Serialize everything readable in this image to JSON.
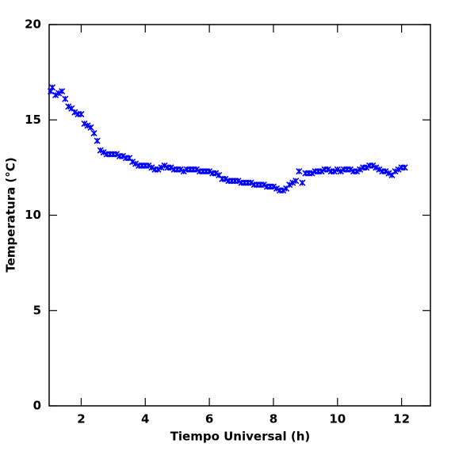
{
  "chart_data": {
    "type": "scatter",
    "xlabel": "Tiempo Universal (h)",
    "ylabel": "Temperatura (°C)",
    "color": "#0000ff",
    "xlim": [
      1,
      12.9
    ],
    "ylim": [
      0,
      20
    ],
    "xticks": [
      2,
      4,
      6,
      8,
      10,
      12
    ],
    "yticks": [
      0,
      5,
      10,
      15,
      20
    ],
    "x": [
      1.05,
      1.1,
      1.2,
      1.3,
      1.4,
      1.5,
      1.6,
      1.7,
      1.8,
      1.9,
      2.0,
      2.1,
      2.2,
      2.3,
      2.4,
      2.5,
      2.6,
      2.7,
      2.8,
      2.9,
      3.0,
      3.1,
      3.2,
      3.3,
      3.4,
      3.5,
      3.6,
      3.7,
      3.8,
      3.9,
      4.0,
      4.1,
      4.2,
      4.3,
      4.4,
      4.5,
      4.6,
      4.7,
      4.8,
      4.9,
      5.0,
      5.1,
      5.2,
      5.3,
      5.4,
      5.5,
      5.6,
      5.7,
      5.8,
      5.9,
      6.0,
      6.1,
      6.2,
      6.3,
      6.4,
      6.5,
      6.6,
      6.7,
      6.8,
      6.9,
      7.0,
      7.1,
      7.2,
      7.3,
      7.4,
      7.5,
      7.6,
      7.7,
      7.8,
      7.9,
      8.0,
      8.1,
      8.2,
      8.3,
      8.4,
      8.5,
      8.6,
      8.7,
      8.8,
      8.9,
      9.0,
      9.1,
      9.2,
      9.3,
      9.4,
      9.5,
      9.6,
      9.7,
      9.8,
      9.9,
      10.0,
      10.1,
      10.2,
      10.3,
      10.4,
      10.5,
      10.6,
      10.7,
      10.8,
      10.9,
      11.0,
      11.1,
      11.2,
      11.3,
      11.4,
      11.5,
      11.6,
      11.7,
      11.8,
      11.9,
      12.0,
      12.1
    ],
    "values": [
      16.5,
      16.7,
      16.3,
      16.4,
      16.5,
      16.1,
      15.7,
      15.6,
      15.4,
      15.3,
      15.3,
      14.8,
      14.7,
      14.6,
      14.3,
      13.9,
      13.4,
      13.3,
      13.2,
      13.2,
      13.2,
      13.2,
      13.1,
      13.1,
      13.0,
      13.0,
      12.8,
      12.7,
      12.6,
      12.6,
      12.6,
      12.6,
      12.5,
      12.4,
      12.4,
      12.5,
      12.6,
      12.5,
      12.5,
      12.4,
      12.4,
      12.4,
      12.3,
      12.4,
      12.4,
      12.4,
      12.4,
      12.3,
      12.3,
      12.3,
      12.3,
      12.2,
      12.2,
      12.1,
      11.9,
      11.9,
      11.8,
      11.8,
      11.8,
      11.8,
      11.7,
      11.7,
      11.7,
      11.7,
      11.6,
      11.6,
      11.6,
      11.6,
      11.5,
      11.5,
      11.5,
      11.4,
      11.3,
      11.3,
      11.4,
      11.6,
      11.7,
      11.8,
      12.3,
      11.7,
      12.2,
      12.2,
      12.2,
      12.3,
      12.3,
      12.3,
      12.4,
      12.4,
      12.3,
      12.3,
      12.4,
      12.3,
      12.4,
      12.4,
      12.4,
      12.3,
      12.3,
      12.4,
      12.5,
      12.5,
      12.6,
      12.6,
      12.5,
      12.4,
      12.3,
      12.3,
      12.2,
      12.1,
      12.3,
      12.4,
      12.5,
      12.5
    ]
  }
}
